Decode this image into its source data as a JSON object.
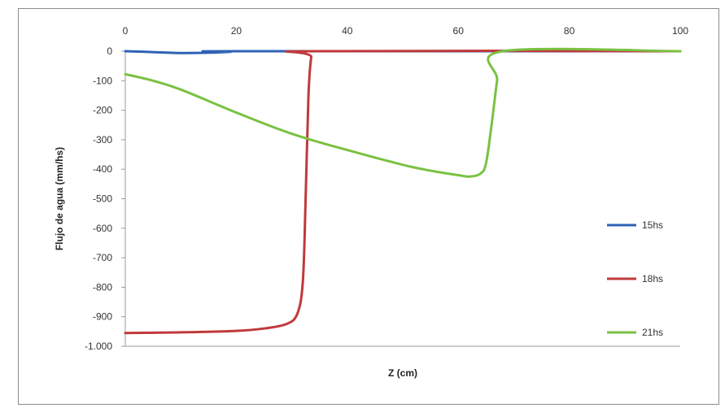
{
  "chart_data": {
    "type": "line",
    "title": "",
    "xlabel": "Z (cm)",
    "ylabel": "Flujo de agua (mm/hs)",
    "xlim": [
      0,
      100
    ],
    "ylim": [
      -1000,
      0
    ],
    "x_ticks": [
      0,
      20,
      40,
      60,
      80,
      100
    ],
    "x_tick_labels": [
      "0",
      "20",
      "40",
      "60",
      "80",
      "100"
    ],
    "y_ticks": [
      0,
      -100,
      -200,
      -300,
      -400,
      -500,
      -600,
      -700,
      -800,
      -900,
      -1000
    ],
    "y_tick_labels": [
      "0",
      "-100",
      "-200",
      "-300",
      "-400",
      "-500",
      "-600",
      "-700",
      "-800",
      "-900",
      "-1.000"
    ],
    "x_axis_position": "top",
    "grid": false,
    "legend_position": "right",
    "series": [
      {
        "name": "15hs",
        "color": "#2f62b5",
        "x": [
          0,
          5,
          10,
          15,
          19,
          20,
          100
        ],
        "y": [
          0,
          -3,
          -6,
          -5,
          -2,
          0,
          0
        ]
      },
      {
        "name": "18hs",
        "color": "#c0393b",
        "x": [
          0,
          10,
          20,
          25,
          29,
          31,
          32,
          32.5,
          33,
          33.5,
          34,
          100
        ],
        "y": [
          -955,
          -953,
          -948,
          -940,
          -925,
          -890,
          -780,
          -500,
          -150,
          -20,
          0,
          0
        ]
      },
      {
        "name": "21hs",
        "color": "#7ac142",
        "x": [
          0,
          5,
          10,
          20,
          30,
          40,
          50,
          55,
          60,
          62,
          64,
          65,
          66,
          67,
          68,
          100
        ],
        "y": [
          -78,
          -100,
          -130,
          -208,
          -280,
          -335,
          -385,
          -405,
          -420,
          -425,
          -415,
          -380,
          -250,
          -100,
          0,
          0
        ]
      }
    ]
  }
}
